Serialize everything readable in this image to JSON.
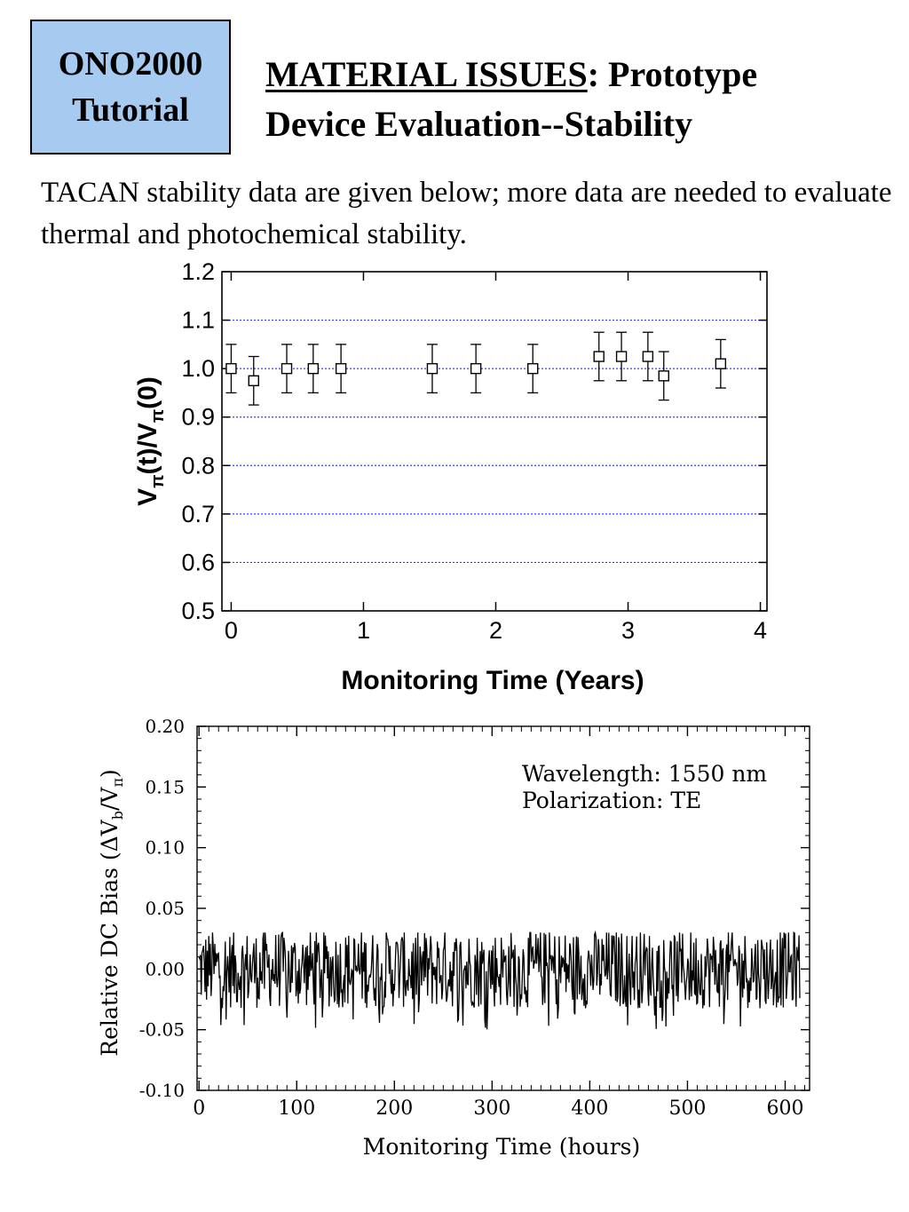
{
  "badge": {
    "line1": "ONO2000",
    "line2": "Tutorial"
  },
  "title": {
    "underlined": "MATERIAL ISSUES",
    "rest1": ":  Prototype",
    "line2": "Device Evaluation--Stability"
  },
  "intro": "TACAN stability data are given below; more data are needed to evaluate thermal and photochemical stability.",
  "chart_data": [
    {
      "type": "scatter",
      "error_bars": true,
      "xlabel": "Monitoring Time (Years)",
      "ylabel_parts": [
        "V",
        "π",
        "(t)/V",
        "π",
        "(0)"
      ],
      "xlim": [
        -0.07,
        4.05
      ],
      "ylim": [
        0.5,
        1.2
      ],
      "xticks": [
        "0",
        "1",
        "2",
        "3",
        "4"
      ],
      "yticks": [
        "0.5",
        "0.6",
        "0.7",
        "0.8",
        "0.9",
        "1.0",
        "1.1",
        "1.2"
      ],
      "grid": "horizontal dotted",
      "grid_color": "#3b3bff",
      "points": [
        {
          "x": 0.0,
          "y": 1.0,
          "err": 0.05
        },
        {
          "x": 0.17,
          "y": 0.975,
          "err": 0.05
        },
        {
          "x": 0.42,
          "y": 1.0,
          "err": 0.05
        },
        {
          "x": 0.62,
          "y": 1.0,
          "err": 0.05
        },
        {
          "x": 0.83,
          "y": 1.0,
          "err": 0.05
        },
        {
          "x": 1.52,
          "y": 1.0,
          "err": 0.05
        },
        {
          "x": 1.85,
          "y": 1.0,
          "err": 0.05
        },
        {
          "x": 2.28,
          "y": 1.0,
          "err": 0.05
        },
        {
          "x": 2.78,
          "y": 1.025,
          "err": 0.05
        },
        {
          "x": 2.95,
          "y": 1.025,
          "err": 0.05
        },
        {
          "x": 3.15,
          "y": 1.025,
          "err": 0.05
        },
        {
          "x": 3.27,
          "y": 0.985,
          "err": 0.05
        },
        {
          "x": 3.7,
          "y": 1.01,
          "err": 0.05
        }
      ]
    },
    {
      "type": "line",
      "xlabel": "Monitoring Time (hours)",
      "ylabel_parts": [
        "Relative DC Bias (",
        "Δ",
        "V",
        "b",
        "/V",
        "π",
        ")"
      ],
      "xlim": [
        -2,
        625
      ],
      "ylim": [
        -0.1,
        0.2
      ],
      "xticks": [
        "0",
        "100",
        "200",
        "300",
        "400",
        "500",
        "600"
      ],
      "yticks": [
        "-0.10",
        "-0.05",
        "0.00",
        "0.05",
        "0.10",
        "0.15",
        "0.20"
      ],
      "annotations": [
        "Wavelength: 1550 nm",
        "Polarization: TE"
      ],
      "series": [
        {
          "x_start": 0,
          "x_end": 615,
          "points": 800,
          "mean": 0.0,
          "typical_range": [
            -0.035,
            0.03
          ],
          "min": -0.05,
          "max": 0.03
        }
      ]
    }
  ]
}
